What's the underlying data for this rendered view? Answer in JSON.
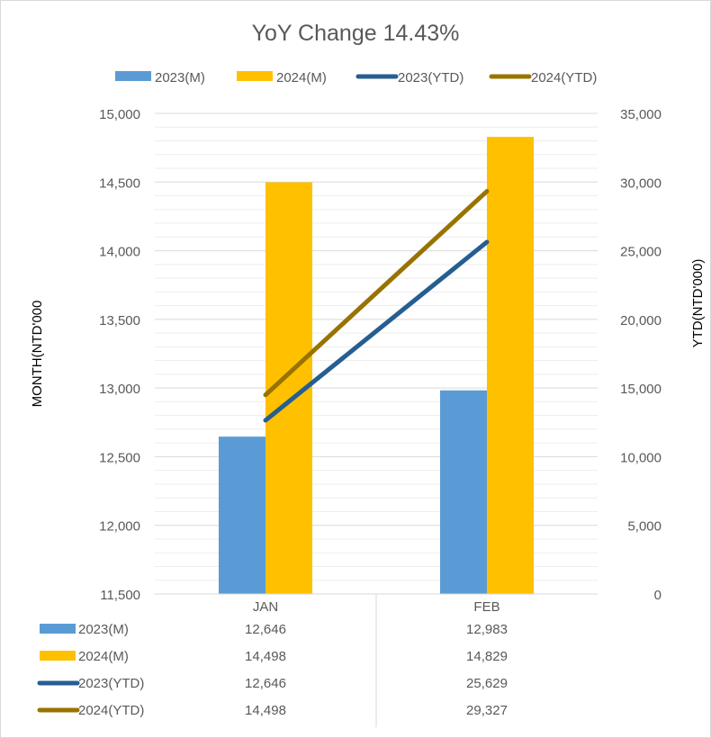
{
  "chart_data": {
    "type": "bar",
    "title": "YoY Change 14.43%",
    "categories": [
      "JAN",
      "FEB"
    ],
    "series": [
      {
        "name": "2023(M)",
        "kind": "bar",
        "axis": "left",
        "color": "#5b9bd5",
        "values": [
          12646,
          12983
        ]
      },
      {
        "name": "2024(M)",
        "kind": "bar",
        "axis": "left",
        "color": "#ffc000",
        "values": [
          14498,
          14829
        ]
      },
      {
        "name": "2023(YTD)",
        "kind": "line",
        "axis": "right",
        "color": "#255e91",
        "values": [
          12646,
          25629
        ]
      },
      {
        "name": "2024(YTD)",
        "kind": "line",
        "axis": "right",
        "color": "#997300",
        "values": [
          14498,
          29327
        ]
      }
    ],
    "y_left": {
      "label": "MONTH(NTD'000",
      "range": [
        11500,
        15000
      ],
      "ticks": [
        11500,
        12000,
        12500,
        13000,
        13500,
        14000,
        14500,
        15000
      ],
      "tick_labels": [
        "11,500",
        "12,000",
        "12,500",
        "13,000",
        "13,500",
        "14,000",
        "14,500",
        "15,000"
      ]
    },
    "y_right": {
      "label": "YTD(NTD'000)",
      "range": [
        0,
        35000
      ],
      "ticks": [
        0,
        5000,
        10000,
        15000,
        20000,
        25000,
        30000,
        35000
      ],
      "tick_labels": [
        "0",
        "5,000",
        "10,000",
        "15,000",
        "20,000",
        "25,000",
        "30,000",
        "35,000"
      ]
    },
    "legend_position": "top",
    "data_table": {
      "rows": [
        {
          "name": "2023(M)",
          "values": [
            "12,646",
            "12,983"
          ]
        },
        {
          "name": "2024(M)",
          "values": [
            "14,498",
            "14,829"
          ]
        },
        {
          "name": "2023(YTD)",
          "values": [
            "12,646",
            "25,629"
          ]
        },
        {
          "name": "2024(YTD)",
          "values": [
            "14,498",
            "29,327"
          ]
        }
      ]
    },
    "grid": true
  }
}
